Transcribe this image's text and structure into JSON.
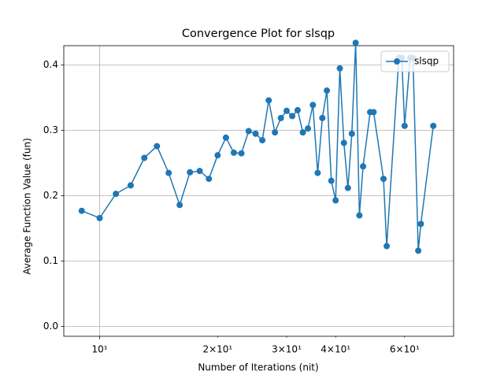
{
  "chart_data": {
    "type": "line",
    "title": "Convergence Plot for slsqp",
    "x_label": "Number of Iterations (nit)",
    "y_label": "Average Function Value (fun)",
    "x": [
      9,
      10,
      11,
      12,
      13,
      14,
      15,
      16,
      17,
      18,
      19,
      20,
      21,
      22,
      23,
      24,
      25,
      26,
      27,
      28,
      29,
      30,
      31,
      32,
      33,
      34,
      35,
      36,
      37,
      38,
      39,
      40,
      41,
      42,
      43,
      44,
      45,
      46,
      47,
      49,
      50,
      53,
      54,
      58,
      59,
      60,
      62,
      63,
      65,
      66,
      71
    ],
    "series": [
      {
        "name": "slsqp",
        "color": "#1f77b4",
        "values": [
          0.177,
          0.166,
          0.203,
          0.216,
          0.258,
          0.276,
          0.235,
          0.186,
          0.236,
          0.238,
          0.226,
          0.262,
          0.289,
          0.266,
          0.265,
          0.299,
          0.295,
          0.285,
          0.346,
          0.297,
          0.319,
          0.33,
          0.322,
          0.331,
          0.297,
          0.303,
          0.339,
          0.235,
          0.319,
          0.361,
          0.223,
          0.193,
          0.395,
          0.281,
          0.212,
          0.295,
          0.434,
          0.17,
          0.245,
          0.328,
          0.328,
          0.226,
          0.123,
          0.411,
          0.411,
          0.307,
          0.411,
          0.411,
          0.116,
          0.157,
          0.307
        ]
      }
    ],
    "x_scale": "log",
    "xlim": [
      8.1,
      80
    ],
    "xticks": [
      {
        "value": 10,
        "label": "10¹"
      }
    ],
    "xminorticks": [
      {
        "value": 20,
        "label": "2×10¹"
      },
      {
        "value": 30,
        "label": "3×10¹"
      },
      {
        "value": 40,
        "label": "4×10¹"
      },
      {
        "value": 60,
        "label": "6×10¹"
      }
    ],
    "ylim": [
      -0.0149,
      0.4297
    ],
    "yticks": [
      {
        "value": 0,
        "label": "0.0"
      },
      {
        "value": 0.1,
        "label": "0.1"
      },
      {
        "value": 0.2,
        "label": "0.2"
      },
      {
        "value": 0.3,
        "label": "0.3"
      },
      {
        "value": 0.4,
        "label": "0.4"
      }
    ],
    "grid": "major",
    "legend": "upper right"
  }
}
